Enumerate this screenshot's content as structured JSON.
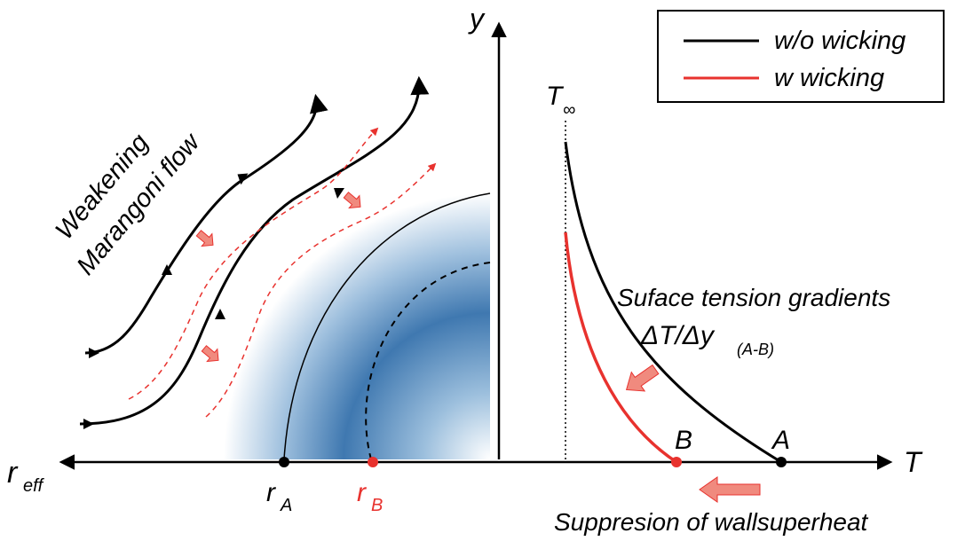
{
  "legend": {
    "items": [
      {
        "label": "w/o wicking",
        "color": "#000000"
      },
      {
        "label": "w wicking",
        "color": "#e8322e"
      }
    ]
  },
  "axes": {
    "y_label": "y",
    "t_label": "T",
    "r_label": "r",
    "r_label_sub": "eff"
  },
  "labels": {
    "t_inf_main": "T",
    "t_inf_sub": "∞",
    "flow_line1": "Weakening",
    "flow_line2": "Marangoni flow",
    "gradients_line1": "Suface tension gradients",
    "gradients_line2": "ΔT/Δy",
    "gradients_sub": "(A-B)",
    "suppression": "Suppresion of wallsuperheat",
    "point_a": "A",
    "point_b": "B",
    "ra_main": "r",
    "ra_sub": "A",
    "rb_main": "r",
    "rb_sub": "B"
  },
  "colors": {
    "accent_red": "#e8322e",
    "arrow_pink": "#f08a7e",
    "droplet_blue": "#3f78b0"
  }
}
